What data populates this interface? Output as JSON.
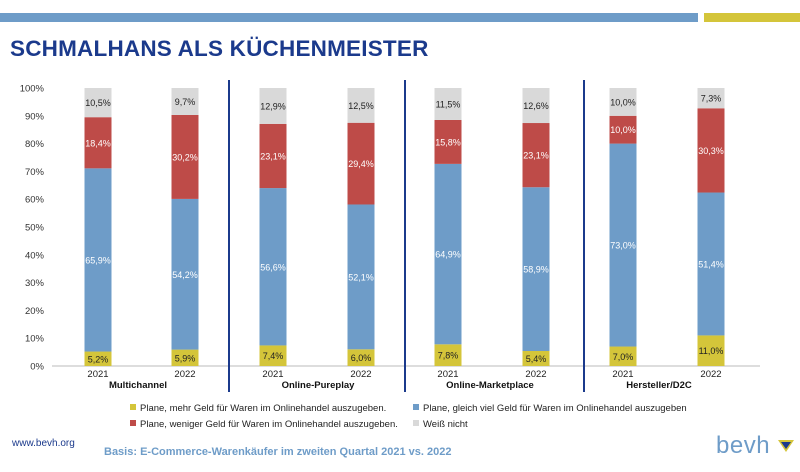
{
  "title": "SCHMALHANS ALS KÜCHENMEISTER",
  "footer": {
    "website": "www.bevh.org",
    "basis": "Basis: E-Commerce-Warenkäufer im zweiten Quartal 2021 vs. 2022",
    "logo_text": "bevh"
  },
  "colors": {
    "more": "#d4c53a",
    "same": "#6e9cc8",
    "less": "#be4b48",
    "dont_know": "#d9d9d9",
    "title": "#1b3a8c",
    "divider": "#1b3a8c"
  },
  "chart_data": {
    "type": "bar",
    "stacked": true,
    "ylim": [
      0,
      100
    ],
    "yticks": [
      "0%",
      "10%",
      "20%",
      "30%",
      "40%",
      "50%",
      "60%",
      "70%",
      "80%",
      "90%",
      "100%"
    ],
    "groups": [
      "Multichannel",
      "Online-Pureplay",
      "Online-Marketplace",
      "Hersteller/D2C"
    ],
    "categories": [
      "2021",
      "2022",
      "2021",
      "2022",
      "2021",
      "2022",
      "2021",
      "2022"
    ],
    "series": [
      {
        "name": "Plane, mehr Geld für Waren im Onlinehandel auszugeben.",
        "key": "more",
        "values": [
          5.2,
          5.9,
          7.4,
          6.0,
          7.8,
          5.4,
          7.0,
          11.0
        ],
        "labels": [
          "5,2%",
          "5,9%",
          "7,4%",
          "6,0%",
          "7,8%",
          "5,4%",
          "7,0%",
          "11,0%"
        ]
      },
      {
        "name": "Plane, gleich viel Geld für Waren im Onlinehandel auszugeben",
        "key": "same",
        "values": [
          65.9,
          54.2,
          56.6,
          52.1,
          64.9,
          58.9,
          73.0,
          51.4
        ],
        "labels": [
          "65,9%",
          "54,2%",
          "56,6%",
          "52,1%",
          "64,9%",
          "58,9%",
          "73,0%",
          "51,4%"
        ]
      },
      {
        "name": "Plane, weniger Geld für Waren im Onlinehandel auszugeben.",
        "key": "less",
        "values": [
          18.4,
          30.2,
          23.1,
          29.4,
          15.8,
          23.1,
          10.0,
          30.3
        ],
        "labels": [
          "18,4%",
          "30,2%",
          "23,1%",
          "29,4%",
          "15,8%",
          "23,1%",
          "10,0%",
          "30,3%"
        ]
      },
      {
        "name": "Weiß nicht",
        "key": "dont_know",
        "values": [
          10.5,
          9.7,
          12.9,
          12.5,
          11.5,
          12.6,
          10.0,
          7.3
        ],
        "labels": [
          "10,5%",
          "9,7%",
          "12,9%",
          "12,5%",
          "11,5%",
          "12,6%",
          "10,0%",
          "7,3%"
        ]
      }
    ],
    "legend_placement": "bottom"
  }
}
